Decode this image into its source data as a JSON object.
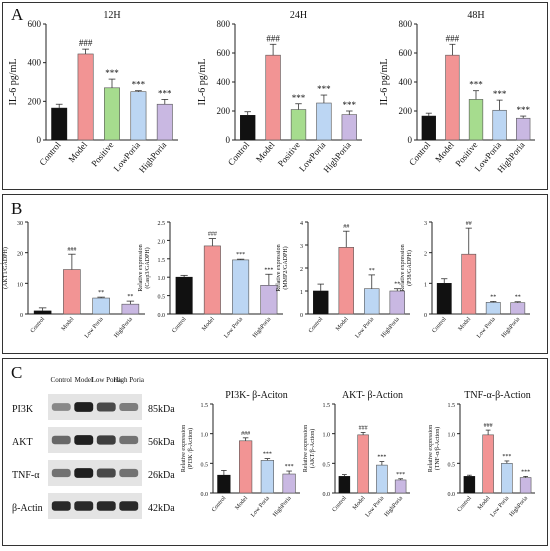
{
  "panels": {
    "A": "A",
    "B": "B",
    "C": "C"
  },
  "colors": {
    "control": "#111111",
    "model": "#f29494",
    "positive": "#a6dc8e",
    "low": "#bcd6f3",
    "high": "#c9b8e2",
    "edge": "#555555"
  },
  "panelA": {
    "categories": [
      "Control",
      "Model",
      "Positive",
      "LowPoria",
      "HighPoria"
    ],
    "ylabel": "IL-6 pg/mL"
  },
  "panelB": {
    "categories": [
      "Control",
      "Model",
      "Low Poria",
      "HighPoria"
    ]
  },
  "panelC": {
    "categories": [
      "Control",
      "Model",
      "Low Poria",
      "HighPoria"
    ],
    "blot": {
      "lanes": [
        "Control",
        "Model",
        "Low Poria",
        "High Poria"
      ],
      "rows": [
        {
          "name": "PI3K",
          "kda": "85kDa",
          "intensity": [
            0.45,
            0.95,
            0.75,
            0.5
          ]
        },
        {
          "name": "AKT",
          "kda": "56kDa",
          "intensity": [
            0.6,
            0.95,
            0.8,
            0.55
          ]
        },
        {
          "name": "TNF-α",
          "kda": "26kDa",
          "intensity": [
            0.55,
            0.95,
            0.75,
            0.55
          ]
        },
        {
          "name": "β-Actin",
          "kda": "42kDa",
          "intensity": [
            0.9,
            0.9,
            0.9,
            0.9
          ]
        }
      ]
    }
  },
  "chart_data": [
    {
      "type": "bar",
      "panel": "A",
      "title": "12H",
      "ylabel": "IL-6 pg/mL",
      "categories": [
        "Control",
        "Model",
        "Positive",
        "LowPoria",
        "HighPoria"
      ],
      "values": [
        165,
        445,
        270,
        250,
        185
      ],
      "errors": [
        20,
        25,
        45,
        5,
        25
      ],
      "sig": [
        "",
        "###",
        "***",
        "***",
        "***"
      ],
      "ylim": [
        0,
        600
      ],
      "yticks": [
        0,
        200,
        400,
        600
      ]
    },
    {
      "type": "bar",
      "panel": "A",
      "title": "24H",
      "ylabel": "IL-6 pg/mL",
      "categories": [
        "Control",
        "Model",
        "Positive",
        "LowPoria",
        "HighPoria"
      ],
      "values": [
        170,
        585,
        210,
        255,
        175
      ],
      "errors": [
        25,
        75,
        40,
        55,
        25
      ],
      "sig": [
        "",
        "###",
        "***",
        "***",
        "***"
      ],
      "ylim": [
        0,
        800
      ],
      "yticks": [
        0,
        200,
        400,
        600,
        800
      ]
    },
    {
      "type": "bar",
      "panel": "A",
      "title": "48H",
      "ylabel": "IL-6 pg/mL",
      "categories": [
        "Control",
        "Model",
        "Positive",
        "LowPoria",
        "HighPoria"
      ],
      "values": [
        165,
        585,
        280,
        205,
        150
      ],
      "errors": [
        20,
        75,
        60,
        70,
        15
      ],
      "sig": [
        "",
        "###",
        "***",
        "***",
        "***"
      ],
      "ylim": [
        0,
        800
      ],
      "yticks": [
        0,
        200,
        400,
        600,
        800
      ]
    },
    {
      "type": "bar",
      "panel": "B",
      "title": "",
      "ylabel": "Relative expression (AKT1/GADPH)",
      "categories": [
        "Control",
        "Model",
        "Low Poria",
        "HighPoria"
      ],
      "values": [
        1.0,
        14.5,
        5.2,
        3.2
      ],
      "errors": [
        1.0,
        5.0,
        0.3,
        1.0
      ],
      "sig": [
        "",
        "###",
        "**",
        "**"
      ],
      "ylim": [
        0,
        30
      ],
      "yticks": [
        0,
        10,
        20,
        30
      ]
    },
    {
      "type": "bar",
      "panel": "B",
      "title": "",
      "ylabel": "Relative expression (Casp3/GADPH)",
      "categories": [
        "Control",
        "Model",
        "Low Poria",
        "HighPoria"
      ],
      "values": [
        1.0,
        1.85,
        1.47,
        0.78
      ],
      "errors": [
        0.05,
        0.2,
        0.02,
        0.3
      ],
      "sig": [
        "",
        "###",
        "***",
        "***"
      ],
      "ylim": [
        0,
        2.5
      ],
      "yticks": [
        0,
        0.5,
        1.0,
        1.5,
        2.0,
        2.5
      ]
    },
    {
      "type": "bar",
      "panel": "B",
      "title": "",
      "ylabel": "Relative expression (MMP2/GADPH)",
      "categories": [
        "Control",
        "Model",
        "Low Poria",
        "HighPoria"
      ],
      "values": [
        1.0,
        2.9,
        1.1,
        1.0
      ],
      "errors": [
        0.3,
        0.7,
        0.6,
        0.1
      ],
      "sig": [
        "",
        "##",
        "**",
        "**"
      ],
      "ylim": [
        0,
        4
      ],
      "yticks": [
        0,
        1,
        2,
        3,
        4
      ]
    },
    {
      "type": "bar",
      "panel": "B",
      "title": "",
      "ylabel": "Relative expression (P38/GADPH)",
      "categories": [
        "Control",
        "Model",
        "Low Poria",
        "HighPoria"
      ],
      "values": [
        1.0,
        1.95,
        0.38,
        0.37
      ],
      "errors": [
        0.15,
        0.85,
        0.03,
        0.03
      ],
      "sig": [
        "",
        "##",
        "**",
        "**"
      ],
      "ylim": [
        0,
        3
      ],
      "yticks": [
        0,
        1,
        2,
        3
      ]
    },
    {
      "type": "bar",
      "panel": "C",
      "title": "PI3K- β-Aciton",
      "ylabel": "Relative expression (PI3K /β-Action)",
      "categories": [
        "Control",
        "Model",
        "Low Poria",
        "HighPoria"
      ],
      "values": [
        0.3,
        0.88,
        0.55,
        0.32
      ],
      "errors": [
        0.08,
        0.05,
        0.03,
        0.05
      ],
      "sig": [
        "",
        "###",
        "***",
        "***"
      ],
      "ylim": [
        0,
        1.5
      ],
      "yticks": [
        0,
        0.5,
        1.0,
        1.5
      ]
    },
    {
      "type": "bar",
      "panel": "C",
      "title": "AKT- β-Action",
      "ylabel": "Relative expression (AKT/β-Action)",
      "categories": [
        "Control",
        "Model",
        "Low Poria",
        "HighPoria"
      ],
      "values": [
        0.28,
        0.98,
        0.47,
        0.22
      ],
      "errors": [
        0.03,
        0.04,
        0.06,
        0.02
      ],
      "sig": [
        "",
        "###",
        "***",
        "***"
      ],
      "ylim": [
        0,
        1.5
      ],
      "yticks": [
        0,
        0.5,
        1.0,
        1.5
      ]
    },
    {
      "type": "bar",
      "panel": "C",
      "title": "TNF-α-β-Action",
      "ylabel": "Relative expression (TNF-α/β-Action)",
      "categories": [
        "Control",
        "Model",
        "Low Poria",
        "HighPoria"
      ],
      "values": [
        0.28,
        0.98,
        0.5,
        0.26
      ],
      "errors": [
        0.02,
        0.08,
        0.04,
        0.02
      ],
      "sig": [
        "",
        "###",
        "***",
        "***"
      ],
      "ylim": [
        0,
        1.5
      ],
      "yticks": [
        0,
        0.5,
        1.0,
        1.5
      ]
    }
  ]
}
